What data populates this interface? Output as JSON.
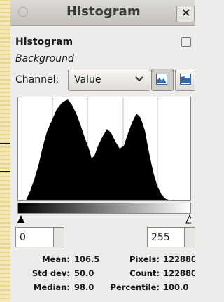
{
  "title_bar": {
    "title": "Histogram",
    "close": "×"
  },
  "panel": {
    "title": "Histogram",
    "subtitle": "Background"
  },
  "channel": {
    "label": "Channel:",
    "value": "Value"
  },
  "range": {
    "min": "0",
    "max": "255"
  },
  "stats": [
    {
      "label": "Mean:",
      "value": "106.5"
    },
    {
      "label": "Std dev:",
      "value": "50.0"
    },
    {
      "label": "Median:",
      "value": "98.0"
    },
    {
      "label": "Pixels:",
      "value": "122880"
    },
    {
      "label": "Count:",
      "value": "122880"
    },
    {
      "label": "Percentile:",
      "value": "100.0"
    }
  ]
}
